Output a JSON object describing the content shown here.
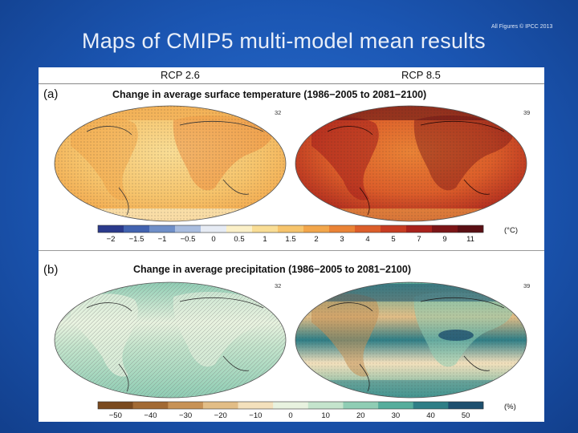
{
  "slide": {
    "title": "Maps of CMIP5 multi-model mean results",
    "credit": "All Figures © IPCC 2013"
  },
  "figure": {
    "scenarios": [
      "RCP 2.6",
      "RCP 8.5"
    ],
    "panel_a": {
      "letter": "(a)",
      "title": "Change in average surface temperature (1986−2005 to 2081−2100)",
      "model_counts": [
        "32",
        "39"
      ],
      "unit": "(°C)",
      "colorbar_ticks": [
        "−2",
        "−1.5",
        "−1",
        "−0.5",
        "0",
        "0.5",
        "1",
        "1.5",
        "2",
        "3",
        "4",
        "5",
        "7",
        "9",
        "11"
      ],
      "colorbar_colors": [
        "#2b3a8c",
        "#4263b0",
        "#6f8fc8",
        "#a9bddf",
        "#e6ebf4",
        "#fbf0c8",
        "#f9dd95",
        "#f6c46c",
        "#f2a64b",
        "#ea8336",
        "#dc5e2a",
        "#c73c22",
        "#a8221c",
        "#7c1517",
        "#5a0f14"
      ]
    },
    "panel_b": {
      "letter": "(b)",
      "title": "Change in average precipitation (1986−2005 to 2081−2100)",
      "model_counts": [
        "32",
        "39"
      ],
      "unit": "(%)",
      "colorbar_ticks": [
        "−50",
        "−40",
        "−30",
        "−20",
        "−10",
        "0",
        "10",
        "20",
        "30",
        "40",
        "50"
      ],
      "colorbar_colors": [
        "#7a4a1e",
        "#a26a34",
        "#c79256",
        "#e2bd86",
        "#f3e0bc",
        "#e8f2df",
        "#c4e4cc",
        "#8fcdb4",
        "#56ad9c",
        "#2f7e86",
        "#1d4f6e"
      ]
    }
  }
}
